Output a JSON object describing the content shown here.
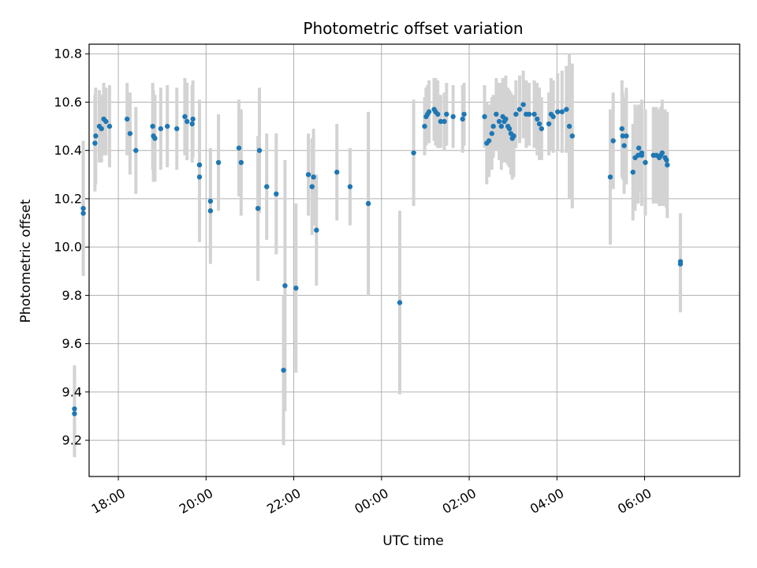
{
  "chart_data": {
    "type": "scatter",
    "title": "Photometric offset variation",
    "xlabel": "UTC time",
    "ylabel": "Photometric offset",
    "xlim": [
      "17:20",
      "08:10"
    ],
    "ylim": [
      9.05,
      10.84
    ],
    "x_ticks": [
      "18:00",
      "20:00",
      "22:00",
      "00:00",
      "02:00",
      "04:00",
      "06:00"
    ],
    "y_ticks": [
      9.2,
      9.4,
      9.6,
      9.8,
      10.0,
      10.2,
      10.4,
      10.6,
      10.8
    ],
    "grid": true,
    "marker_color": "#1f77b4",
    "errorbar_color": "#d3d3d3",
    "series": [
      {
        "x": [
          "17:00",
          "17:00",
          "17:12",
          "17:12",
          "17:28",
          "17:29",
          "17:34",
          "17:37",
          "17:40",
          "17:43",
          "17:48",
          "18:12",
          "18:16",
          "18:24",
          "18:47",
          "18:48",
          "18:50",
          "18:58",
          "19:07",
          "19:20",
          "19:31",
          "19:34",
          "19:41",
          "19:42",
          "19:51",
          "19:51",
          "20:06",
          "20:06",
          "20:17",
          "20:45",
          "20:48",
          "21:11",
          "21:13",
          "21:23",
          "21:36",
          "21:46",
          "21:48",
          "22:03",
          "22:20",
          "22:25",
          "22:27",
          "22:31",
          "22:59",
          "23:17",
          "23:42",
          "00:25",
          "00:44",
          "00:59",
          "01:01",
          "01:03",
          "01:05",
          "01:12",
          "01:14",
          "01:17",
          "01:21",
          "01:26",
          "01:29",
          "01:38",
          "01:51",
          "01:53",
          "02:21",
          "02:24",
          "02:27",
          "02:31",
          "02:33",
          "02:37",
          "02:41",
          "02:44",
          "02:46",
          "02:48",
          "02:50",
          "02:53",
          "02:55",
          "02:57",
          "02:59",
          "03:01",
          "03:04",
          "03:09",
          "03:14",
          "03:18",
          "03:22",
          "03:29",
          "03:33",
          "03:36",
          "03:39",
          "03:49",
          "03:52",
          "03:55",
          "04:01",
          "04:07",
          "04:13",
          "04:17",
          "04:21",
          "05:13",
          "05:17",
          "05:29",
          "05:30",
          "05:32",
          "05:35",
          "05:44",
          "05:47",
          "05:51",
          "05:52",
          "05:56",
          "05:56",
          "06:01",
          "06:12",
          "06:16",
          "06:20",
          "06:22",
          "06:24",
          "06:28",
          "06:30",
          "06:31",
          "06:49",
          "06:49"
        ],
        "y": [
          9.33,
          9.31,
          10.16,
          10.14,
          10.43,
          10.46,
          10.5,
          10.49,
          10.53,
          10.52,
          10.5,
          10.53,
          10.47,
          10.4,
          10.5,
          10.46,
          10.45,
          10.49,
          10.5,
          10.49,
          10.54,
          10.52,
          10.51,
          10.53,
          10.34,
          10.29,
          10.15,
          10.19,
          10.35,
          10.41,
          10.35,
          10.16,
          10.4,
          10.25,
          10.22,
          9.49,
          9.84,
          9.83,
          10.3,
          10.25,
          10.29,
          10.07,
          10.31,
          10.25,
          10.18,
          9.77,
          10.39,
          10.5,
          10.54,
          10.55,
          10.56,
          10.57,
          10.56,
          10.55,
          10.52,
          10.52,
          10.55,
          10.54,
          10.53,
          10.55,
          10.54,
          10.43,
          10.44,
          10.47,
          10.5,
          10.55,
          10.52,
          10.5,
          10.54,
          10.52,
          10.53,
          10.5,
          10.49,
          10.47,
          10.45,
          10.46,
          10.55,
          10.57,
          10.59,
          10.55,
          10.55,
          10.55,
          10.53,
          10.51,
          10.49,
          10.51,
          10.55,
          10.54,
          10.56,
          10.56,
          10.57,
          10.5,
          10.46,
          10.29,
          10.44,
          10.49,
          10.46,
          10.42,
          10.46,
          10.31,
          10.37,
          10.38,
          10.41,
          10.38,
          10.39,
          10.35,
          10.38,
          10.38,
          10.37,
          10.38,
          10.39,
          10.37,
          10.36,
          10.34,
          9.94,
          9.93
        ],
        "err": [
          0.18,
          0.18,
          0.28,
          0.25,
          0.2,
          0.2,
          0.15,
          0.14,
          0.15,
          0.14,
          0.17,
          0.15,
          0.17,
          0.18,
          0.18,
          0.19,
          0.18,
          0.17,
          0.17,
          0.17,
          0.16,
          0.16,
          0.16,
          0.16,
          0.27,
          0.27,
          0.22,
          0.22,
          0.2,
          0.2,
          0.22,
          0.3,
          0.26,
          0.22,
          0.25,
          0.31,
          0.52,
          0.35,
          0.17,
          0.2,
          0.2,
          0.23,
          0.2,
          0.16,
          0.38,
          0.38,
          0.22,
          0.12,
          0.12,
          0.12,
          0.13,
          0.13,
          0.14,
          0.14,
          0.11,
          0.12,
          0.13,
          0.13,
          0.14,
          0.13,
          0.13,
          0.17,
          0.15,
          0.15,
          0.13,
          0.15,
          0.16,
          0.18,
          0.16,
          0.17,
          0.18,
          0.16,
          0.16,
          0.17,
          0.17,
          0.17,
          0.14,
          0.14,
          0.14,
          0.14,
          0.13,
          0.14,
          0.15,
          0.15,
          0.13,
          0.13,
          0.15,
          0.15,
          0.16,
          0.17,
          0.18,
          0.3,
          0.3,
          0.28,
          0.2,
          0.2,
          0.18,
          0.2,
          0.2,
          0.2,
          0.22,
          0.2,
          0.18,
          0.2,
          0.22,
          0.22,
          0.2,
          0.2,
          0.2,
          0.2,
          0.22,
          0.2,
          0.2,
          0.22,
          0.2,
          0.2
        ]
      }
    ]
  }
}
